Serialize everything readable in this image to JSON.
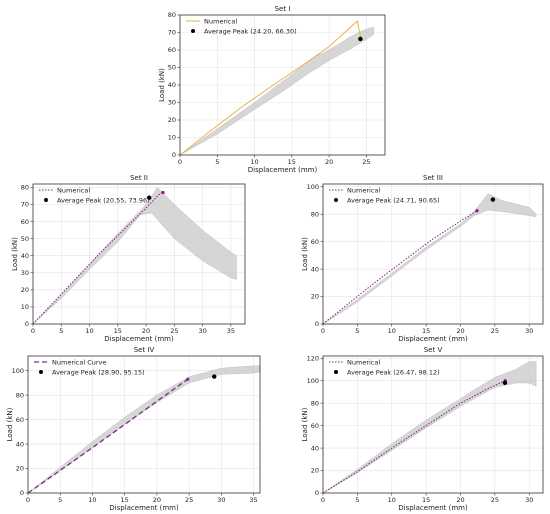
{
  "chart_data": [
    {
      "type": "line",
      "title": "Set I",
      "xlabel": "Displacement (mm)",
      "ylabel": "Load (kN)",
      "xlim": [
        0,
        27.5
      ],
      "ylim": [
        0,
        80
      ],
      "xticks": [
        "0",
        "5",
        "10",
        "15",
        "20",
        "25"
      ],
      "yticks": [
        "0",
        "10",
        "20",
        "30",
        "40",
        "50",
        "60",
        "70",
        "80"
      ],
      "xtick_values": [
        0,
        5,
        10,
        15,
        20,
        25
      ],
      "ytick_values": [
        0,
        10,
        20,
        30,
        40,
        50,
        60,
        70,
        80
      ],
      "grid": true,
      "legend_position": "top-left",
      "series": [
        {
          "name": "Numerical",
          "color": "#e8b640",
          "style": "solid",
          "x": [
            0,
            4,
            8,
            12,
            16,
            20,
            23.8,
            24.1,
            24.3
          ],
          "y": [
            0,
            13.5,
            26.5,
            38.5,
            50,
            62,
            76.5,
            70,
            66
          ]
        }
      ],
      "scatter": [
        {
          "name": "Average Peak (24.20, 66.30)",
          "x": 24.2,
          "y": 66.3,
          "color": "#000000"
        }
      ],
      "band": {
        "color": "#c8c8c8",
        "upper": [
          [
            0,
            0
          ],
          [
            5,
            15
          ],
          [
            10,
            30
          ],
          [
            15,
            46
          ],
          [
            18,
            56
          ],
          [
            20,
            60
          ],
          [
            23,
            68
          ],
          [
            25,
            72
          ],
          [
            26,
            73
          ]
        ],
        "lower": [
          [
            26,
            69
          ],
          [
            25,
            66
          ],
          [
            23,
            61
          ],
          [
            20,
            54
          ],
          [
            17,
            46
          ],
          [
            14,
            37
          ],
          [
            10,
            26
          ],
          [
            5,
            12
          ],
          [
            0,
            0
          ]
        ]
      }
    },
    {
      "type": "line",
      "title": "Set II",
      "xlabel": "Displacement (mm)",
      "ylabel": "Load (kN)",
      "xlim": [
        0,
        37.5
      ],
      "ylim": [
        0,
        82
      ],
      "xticks": [
        "0",
        "5",
        "10",
        "15",
        "20",
        "25",
        "30",
        "35"
      ],
      "yticks": [
        "0",
        "10",
        "20",
        "30",
        "40",
        "50",
        "60",
        "70",
        "80"
      ],
      "xtick_values": [
        0,
        5,
        10,
        15,
        20,
        25,
        30,
        35
      ],
      "ytick_values": [
        0,
        10,
        20,
        30,
        40,
        50,
        60,
        70,
        80
      ],
      "grid": true,
      "legend_position": "top-left",
      "series": [
        {
          "name": "Numerical",
          "color": "#8a1a8a",
          "style": "dotted",
          "x": [
            0,
            4,
            8,
            12,
            16,
            20,
            22.5,
            23
          ],
          "y": [
            0,
            14,
            28,
            42,
            55,
            68,
            76.5,
            77
          ]
        }
      ],
      "scatter": [
        {
          "name": "Average Peak (20.55, 73.96)",
          "x": 20.55,
          "y": 73.96,
          "color": "#000000"
        }
      ],
      "band": {
        "color": "#c8c8c8",
        "upper": [
          [
            0,
            0
          ],
          [
            5,
            17
          ],
          [
            10,
            35
          ],
          [
            15,
            53
          ],
          [
            20,
            70
          ],
          [
            22,
            80
          ],
          [
            25,
            70
          ],
          [
            30,
            55
          ],
          [
            35,
            42
          ],
          [
            36,
            40
          ]
        ],
        "lower": [
          [
            36,
            26
          ],
          [
            35,
            27
          ],
          [
            30,
            37
          ],
          [
            25,
            50
          ],
          [
            21,
            65
          ],
          [
            19,
            64
          ],
          [
            15,
            48
          ],
          [
            10,
            32
          ],
          [
            5,
            15
          ],
          [
            0,
            0
          ]
        ]
      }
    },
    {
      "type": "line",
      "title": "Set III",
      "xlabel": "Displacement (mm)",
      "ylabel": "Load (kN)",
      "xlim": [
        0,
        32
      ],
      "ylim": [
        0,
        102
      ],
      "xticks": [
        "0",
        "5",
        "10",
        "15",
        "20",
        "25",
        "30"
      ],
      "yticks": [
        "0",
        "20",
        "40",
        "60",
        "80",
        "100"
      ],
      "xtick_values": [
        0,
        5,
        10,
        15,
        20,
        25,
        30
      ],
      "ytick_values": [
        0,
        20,
        40,
        60,
        80,
        100
      ],
      "grid": true,
      "legend_position": "top-left",
      "series": [
        {
          "name": "Numerical",
          "color": "#8a1a8a",
          "style": "dotted",
          "x": [
            0,
            4,
            8,
            12,
            16,
            20,
            22.4
          ],
          "y": [
            0,
            16,
            32,
            47,
            62,
            75,
            82.5
          ]
        }
      ],
      "scatter": [
        {
          "name": "Average Peak (24.71, 90.65)",
          "x": 24.71,
          "y": 90.65,
          "color": "#000000"
        }
      ],
      "band": {
        "color": "#c8c8c8",
        "upper": [
          [
            0,
            0
          ],
          [
            5,
            18
          ],
          [
            10,
            37
          ],
          [
            15,
            56
          ],
          [
            20,
            73
          ],
          [
            22,
            82
          ],
          [
            24,
            95
          ],
          [
            26,
            90
          ],
          [
            30,
            85
          ],
          [
            31,
            80
          ]
        ],
        "lower": [
          [
            31,
            78
          ],
          [
            30,
            79
          ],
          [
            26,
            82
          ],
          [
            24,
            83
          ],
          [
            22,
            79
          ],
          [
            20,
            71
          ],
          [
            15,
            54
          ],
          [
            10,
            35
          ],
          [
            5,
            16
          ],
          [
            0,
            0
          ]
        ]
      }
    },
    {
      "type": "line",
      "title": "Set IV",
      "xlabel": "Displacement (mm)",
      "ylabel": "Load (kN)",
      "xlim": [
        0,
        36
      ],
      "ylim": [
        0,
        112
      ],
      "xticks": [
        "0",
        "5",
        "10",
        "15",
        "20",
        "25",
        "30",
        "35"
      ],
      "yticks": [
        "0",
        "20",
        "40",
        "60",
        "80",
        "100"
      ],
      "xtick_values": [
        0,
        5,
        10,
        15,
        20,
        25,
        30,
        35
      ],
      "ytick_values": [
        0,
        20,
        40,
        60,
        80,
        100
      ],
      "grid": true,
      "legend_position": "top-left",
      "series": [
        {
          "name": "Numerical Curve",
          "color": "#7a2a8a",
          "style": "dashed",
          "x": [
            0,
            5,
            10,
            15,
            20,
            24.8
          ],
          "y": [
            0,
            18.5,
            37,
            56,
            75,
            93
          ]
        }
      ],
      "scatter": [
        {
          "name": "Average Peak (28.90, 95.15)",
          "x": 28.9,
          "y": 95.15,
          "color": "#000000"
        }
      ],
      "band": {
        "color": "#c8c8c8",
        "upper": [
          [
            0,
            0
          ],
          [
            5,
            21
          ],
          [
            10,
            42
          ],
          [
            15,
            62
          ],
          [
            20,
            80
          ],
          [
            25,
            95
          ],
          [
            30,
            102
          ],
          [
            35,
            104
          ],
          [
            36,
            104
          ]
        ],
        "lower": [
          [
            36,
            99
          ],
          [
            35,
            98
          ],
          [
            30,
            97
          ],
          [
            25,
            90
          ],
          [
            20,
            74
          ],
          [
            15,
            56
          ],
          [
            10,
            37
          ],
          [
            5,
            18
          ],
          [
            0,
            0
          ]
        ]
      }
    },
    {
      "type": "line",
      "title": "Set V",
      "xlabel": "Displacement (mm)",
      "ylabel": "Load (kN)",
      "xlim": [
        0,
        32
      ],
      "ylim": [
        0,
        122
      ],
      "xticks": [
        "0",
        "5",
        "10",
        "15",
        "20",
        "25",
        "30"
      ],
      "yticks": [
        "0",
        "20",
        "40",
        "60",
        "80",
        "100",
        "120"
      ],
      "xtick_values": [
        0,
        5,
        10,
        15,
        20,
        25,
        30
      ],
      "ytick_values": [
        0,
        20,
        40,
        60,
        80,
        100,
        120
      ],
      "grid": true,
      "legend_position": "top-left",
      "series": [
        {
          "name": "Numerical",
          "color": "#8a1a8a",
          "style": "dotted",
          "x": [
            0,
            5,
            10,
            15,
            20,
            24,
            26.5
          ],
          "y": [
            0,
            19,
            40,
            60,
            80,
            93,
            100
          ]
        }
      ],
      "scatter": [
        {
          "name": "Average Peak (26.47, 98.12)",
          "x": 26.47,
          "y": 98.12,
          "color": "#000000"
        }
      ],
      "band": {
        "color": "#c8c8c8",
        "upper": [
          [
            0,
            0
          ],
          [
            5,
            21
          ],
          [
            10,
            44
          ],
          [
            15,
            65
          ],
          [
            20,
            84
          ],
          [
            22,
            92
          ],
          [
            25,
            103
          ],
          [
            28,
            110
          ],
          [
            30,
            117
          ],
          [
            31,
            117
          ]
        ],
        "lower": [
          [
            31,
            95
          ],
          [
            30,
            98
          ],
          [
            28,
            98
          ],
          [
            25,
            94
          ],
          [
            22,
            84
          ],
          [
            20,
            77
          ],
          [
            15,
            58
          ],
          [
            10,
            38
          ],
          [
            5,
            18
          ],
          [
            0,
            0
          ]
        ]
      }
    }
  ]
}
